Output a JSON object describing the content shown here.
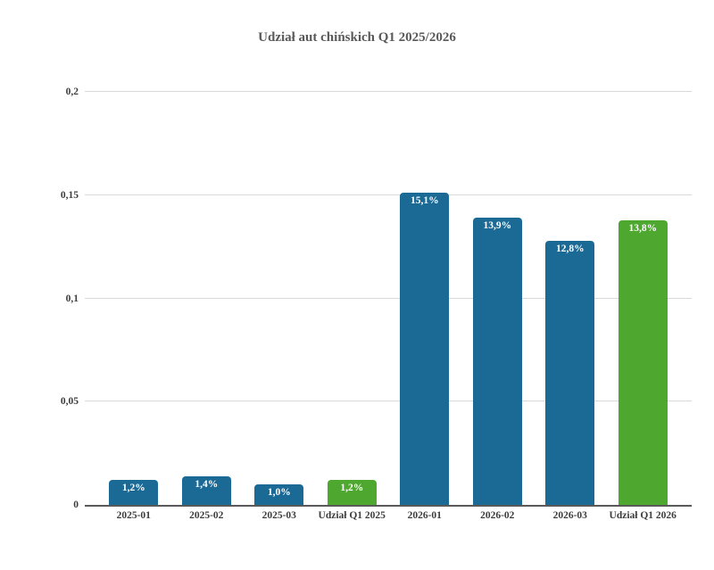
{
  "title": "Udział aut chińskich Q1 2025/2026",
  "colors": {
    "bar_blue": "#1b6a96",
    "bar_green": "#4ea72e",
    "grid": "#d9d9d9",
    "axis": "#595959",
    "title_text": "#595959",
    "tick_text": "#3d3d3d",
    "value_label_text": "#ffffff"
  },
  "chart_data": {
    "type": "bar",
    "title": "Udział aut chińskich Q1 2025/2026",
    "categories": [
      "2025-01",
      "2025-02",
      "2025-03",
      "Udział Q1 2025",
      "2026-01",
      "2026-02",
      "2026-03",
      "Udział Q1 2026"
    ],
    "values": [
      0.012,
      0.014,
      0.01,
      0.012,
      0.151,
      0.139,
      0.128,
      0.138
    ],
    "value_labels": [
      "1,2%",
      "1,4%",
      "1,0%",
      "1,2%",
      "15,1%",
      "13,9%",
      "12,8%",
      "13,8%"
    ],
    "bar_colors": [
      "#1b6a96",
      "#1b6a96",
      "#1b6a96",
      "#4ea72e",
      "#1b6a96",
      "#1b6a96",
      "#1b6a96",
      "#4ea72e"
    ],
    "xlabel": "",
    "ylabel": "",
    "ylim": [
      0,
      0.2
    ],
    "ytick_values": [
      0,
      0.05,
      0.1,
      0.15,
      0.2
    ],
    "ytick_labels": [
      "0",
      "0,05",
      "0,1",
      "0,15",
      "0,2"
    ],
    "grid": "horizontal",
    "legend_position": "none"
  }
}
